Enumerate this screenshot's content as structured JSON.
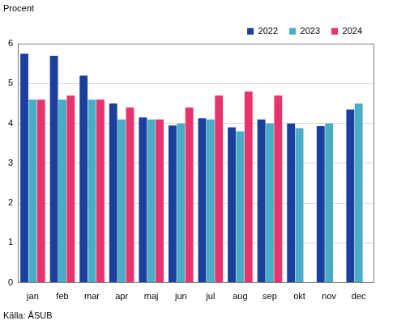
{
  "chart_data": {
    "type": "bar",
    "y_label": "Procent",
    "source": "Källa: ÅSUB",
    "categories": [
      "jan",
      "feb",
      "mar",
      "apr",
      "maj",
      "jun",
      "jul",
      "aug",
      "sep",
      "okt",
      "nov",
      "dec"
    ],
    "series": [
      {
        "name": "2022",
        "color": "#1a3f9c",
        "values": [
          5.75,
          5.7,
          5.2,
          4.5,
          4.15,
          3.95,
          4.13,
          3.9,
          4.1,
          4.0,
          3.93,
          4.35
        ]
      },
      {
        "name": "2023",
        "color": "#4bacc6",
        "values": [
          4.6,
          4.6,
          4.6,
          4.1,
          4.1,
          4.0,
          4.1,
          3.8,
          4.0,
          3.88,
          4.0,
          4.5
        ]
      },
      {
        "name": "2024",
        "color": "#e8336d",
        "values": [
          4.6,
          4.7,
          4.6,
          4.4,
          4.1,
          4.4,
          4.7,
          4.8,
          4.7,
          null,
          null,
          null
        ]
      }
    ],
    "ylim": [
      0,
      6
    ],
    "yticks": [
      0,
      1,
      2,
      3,
      4,
      5,
      6
    ],
    "grid": true,
    "legend": "upper right"
  }
}
